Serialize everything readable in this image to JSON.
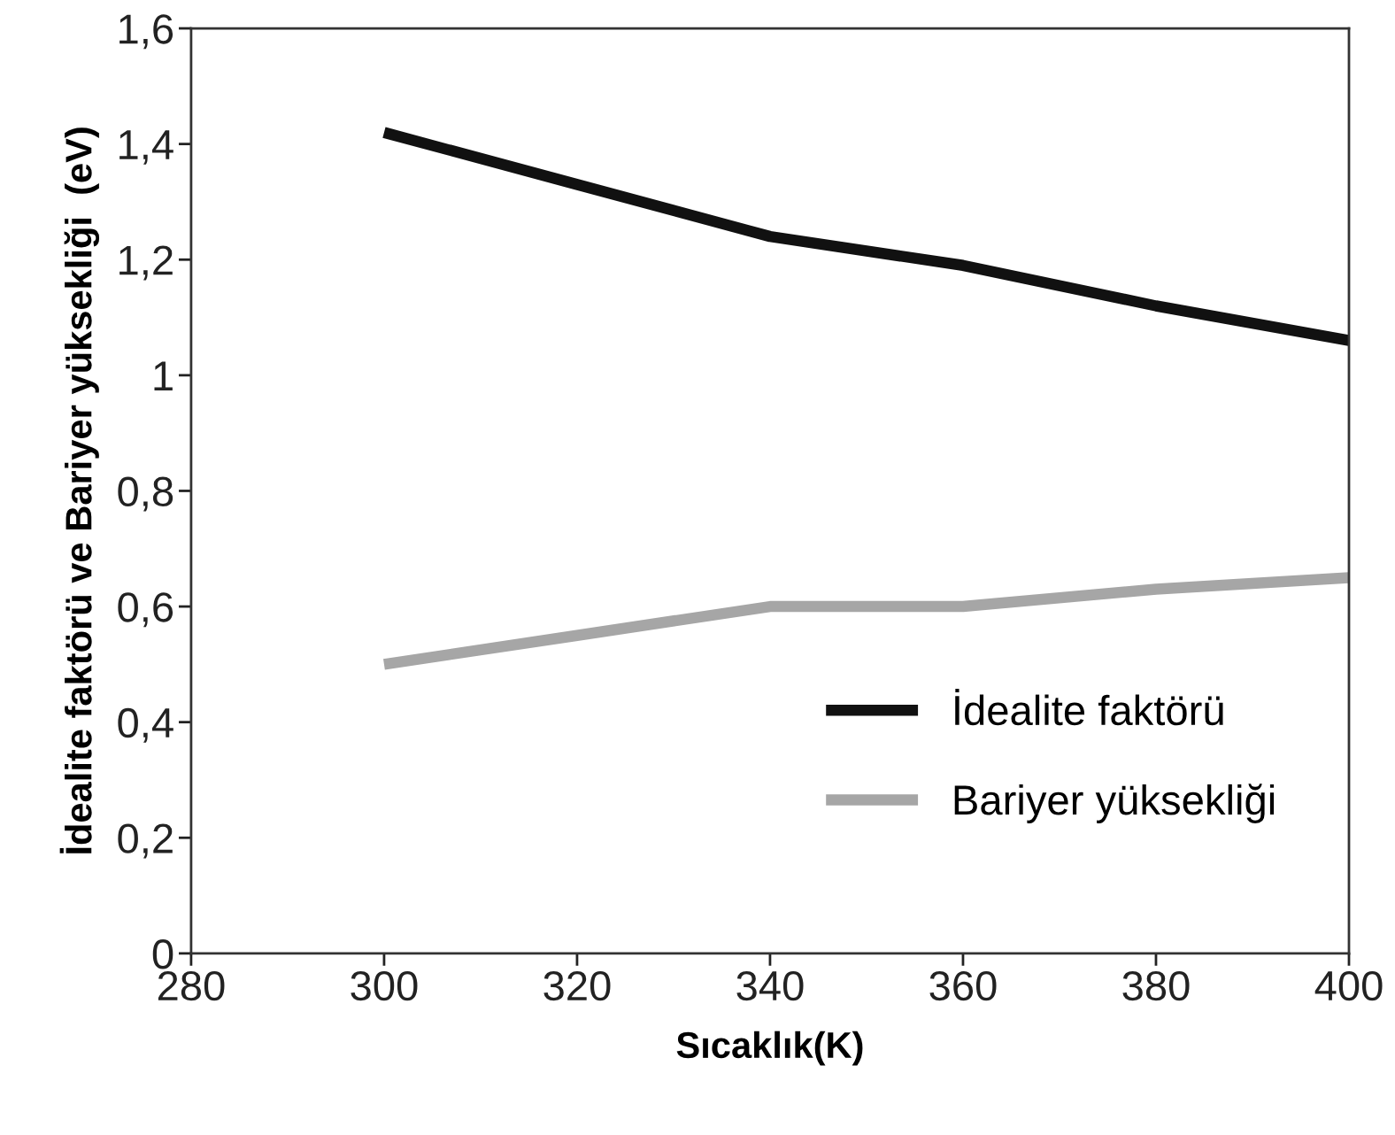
{
  "chart_data": {
    "type": "line",
    "xlabel": "Sıcaklık(K)",
    "ylabel": "İdealite faktörü ve Bariyer yüksekliği  (eV)",
    "x": [
      300,
      320,
      340,
      360,
      380,
      400
    ],
    "series": [
      {
        "name": "İdealite faktörü",
        "color": "#111111",
        "values": [
          1.42,
          1.33,
          1.24,
          1.19,
          1.12,
          1.06
        ]
      },
      {
        "name": "Bariyer yüksekliği",
        "color": "#a6a6a6",
        "values": [
          0.5,
          0.55,
          0.6,
          0.6,
          0.63,
          0.65
        ]
      }
    ],
    "xlim": [
      280,
      400
    ],
    "xticks": [
      280,
      300,
      320,
      340,
      360,
      380,
      400
    ],
    "ylim": [
      0,
      1.6
    ],
    "yticks": [
      0,
      {
        "value": 0.2,
        "label": "0,2"
      },
      {
        "value": 0.4,
        "label": "0,4"
      },
      {
        "value": 0.6,
        "label": "0,6"
      },
      {
        "value": 0.8,
        "label": "0,8"
      },
      1,
      {
        "value": 1.2,
        "label": "1,2"
      },
      {
        "value": 1.4,
        "label": "1,4"
      },
      {
        "value": 1.6,
        "label": "1,6"
      }
    ],
    "grid": false,
    "legend": "bottom right",
    "marker": "none",
    "line_style": "solid"
  }
}
